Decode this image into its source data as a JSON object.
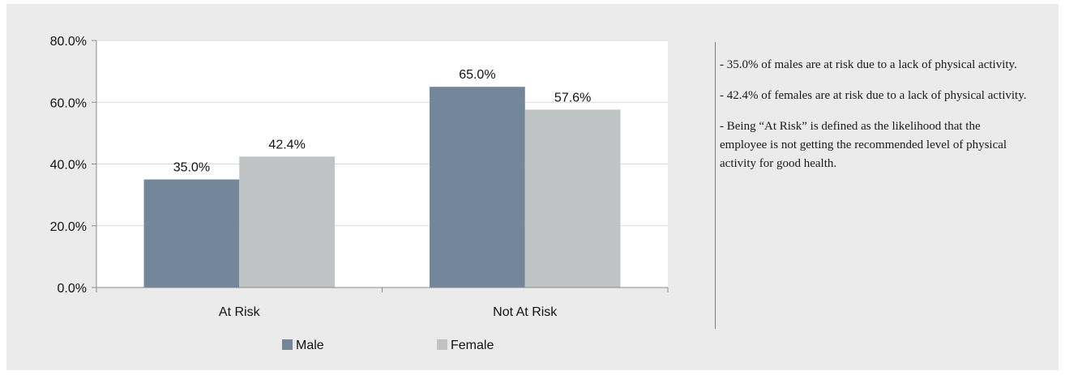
{
  "chart_data": {
    "type": "bar",
    "categories": [
      "At Risk",
      "Not At Risk"
    ],
    "series": [
      {
        "name": "Male",
        "values": [
          35.0,
          65.0
        ],
        "labels": [
          "35.0%",
          "65.0%"
        ],
        "color": "#74869a"
      },
      {
        "name": "Female",
        "values": [
          42.4,
          57.6
        ],
        "labels": [
          "42.4%",
          "57.6%"
        ],
        "color": "#bfc3c3"
      }
    ],
    "ylim": [
      0,
      80
    ],
    "yticks": [
      0,
      20,
      40,
      60,
      80
    ],
    "ytick_labels": [
      "0.0%",
      "20.0%",
      "40.0%",
      "60.0%",
      "80.0%"
    ],
    "grid": true,
    "legend_position": "bottom",
    "title": "",
    "xlabel": "",
    "ylabel": ""
  },
  "notes": [
    "- 35.0% of males are at risk due to a lack of physical activity.",
    "- 42.4% of females are at risk due to a lack of physical activity.",
    "- Being “At Risk” is defined as the likelihood that the employee is not getting the recommended level of physical activity for good health."
  ],
  "colors": {
    "panel_background": "#ebebeb",
    "plot_background": "#ffffff",
    "gridline": "#d9d9d9"
  }
}
